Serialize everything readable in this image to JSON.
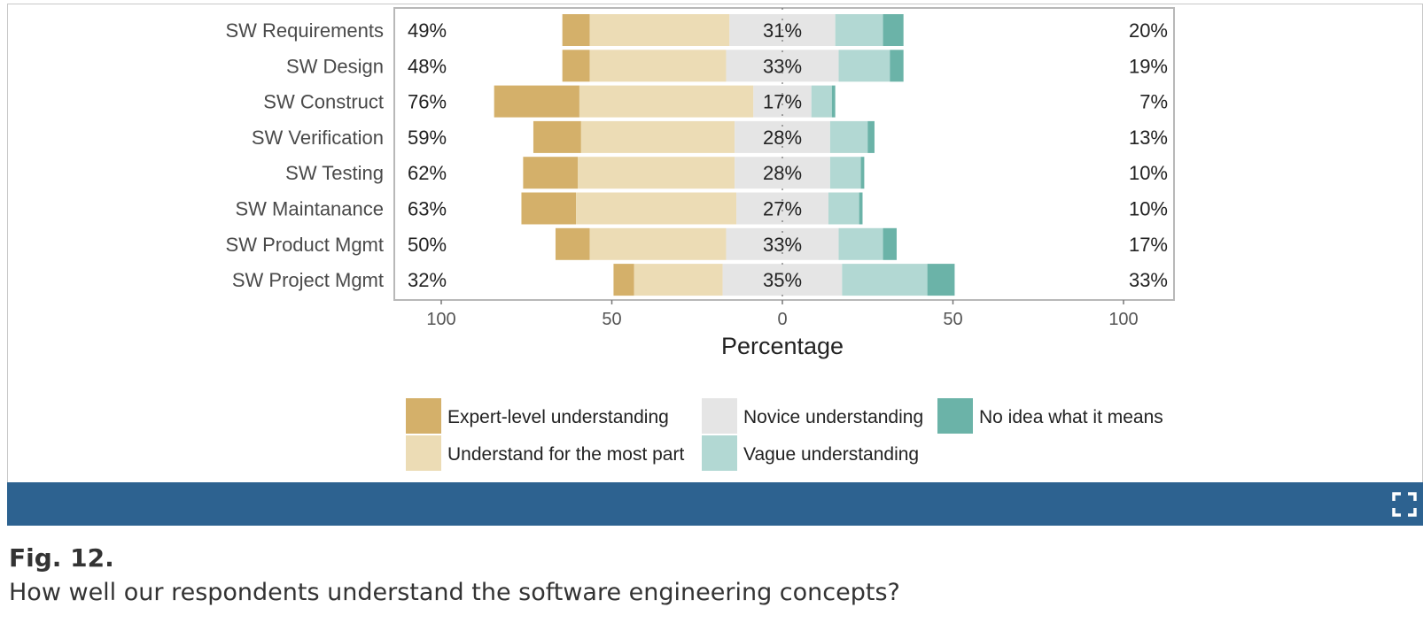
{
  "figure": {
    "label": "Fig. 12.",
    "caption": "How well our respondents understand the software engineering concepts?"
  },
  "colors": {
    "expert": "#d4b06a",
    "most": "#ecdcb5",
    "novice": "#e5e5e5",
    "vague": "#b2d8d3",
    "noidea": "#6bb3a8",
    "toolbar": "#2d6290"
  },
  "icons": {
    "expand": "expand-icon"
  },
  "chart_data": {
    "type": "bar",
    "orientation": "horizontal-diverging",
    "categories": [
      "SW Requirements",
      "SW Design",
      "SW Construct",
      "SW Verification",
      "SW Testing",
      "SW Maintanance",
      "SW Product Mgmt",
      "SW Project Mgmt"
    ],
    "series": [
      {
        "name": "Expert-level understanding",
        "values": [
          8,
          8,
          25,
          14,
          16,
          16,
          10,
          6
        ]
      },
      {
        "name": "Understand for the most part",
        "values": [
          41,
          40,
          51,
          45,
          46,
          47,
          40,
          26
        ]
      },
      {
        "name": "Novice understanding",
        "values": [
          31,
          33,
          17,
          28,
          28,
          27,
          33,
          35
        ]
      },
      {
        "name": "Vague understanding",
        "values": [
          14,
          15,
          6,
          11,
          9,
          9,
          13,
          25
        ]
      },
      {
        "name": "No idea what it means",
        "values": [
          6,
          4,
          1,
          2,
          1,
          1,
          4,
          8
        ]
      }
    ],
    "left_labels": [
      "49%",
      "48%",
      "76%",
      "59%",
      "62%",
      "63%",
      "50%",
      "32%"
    ],
    "center_labels": [
      "31%",
      "33%",
      "17%",
      "28%",
      "28%",
      "27%",
      "33%",
      "35%"
    ],
    "right_labels": [
      "20%",
      "19%",
      "7%",
      "13%",
      "10%",
      "10%",
      "17%",
      "33%"
    ],
    "xlabel": "Percentage",
    "xticks": [
      -100,
      -50,
      0,
      50,
      100
    ],
    "xtick_labels": [
      "100",
      "50",
      "0",
      "50",
      "100"
    ],
    "xlim": [
      -114,
      114
    ],
    "legend_position": "bottom",
    "legend_order": [
      "Expert-level understanding",
      "Novice understanding",
      "No idea what it means",
      "Understand for the most part",
      "Vague understanding"
    ]
  }
}
